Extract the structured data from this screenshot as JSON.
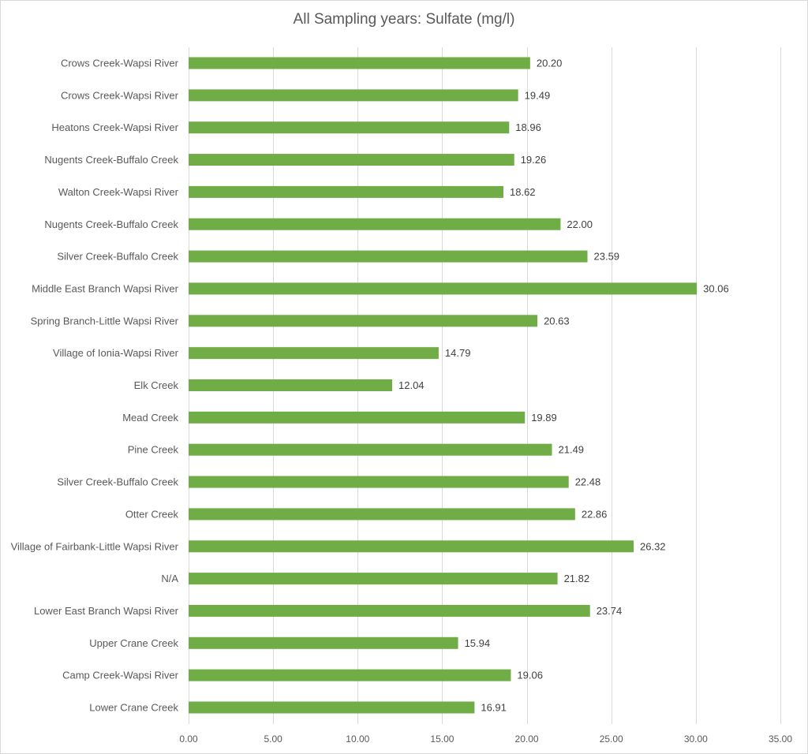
{
  "chart_data": {
    "type": "bar",
    "orientation": "horizontal",
    "title": "All Sampling years: Sulfate (mg/l)",
    "xlabel": "",
    "ylabel": "",
    "categories": [
      "Crows Creek-Wapsi River",
      "Crows Creek-Wapsi River",
      "Heatons Creek-Wapsi River",
      "Nugents Creek-Buffalo Creek",
      "Walton Creek-Wapsi River",
      "Nugents Creek-Buffalo Creek",
      "Silver Creek-Buffalo Creek",
      "Middle East Branch Wapsi River",
      "Spring Branch-Little Wapsi River",
      "Village of Ionia-Wapsi River",
      "Elk Creek",
      "Mead Creek",
      "Pine Creek",
      "Silver Creek-Buffalo Creek",
      "Otter Creek",
      "Village of Fairbank-Little Wapsi River",
      "N/A",
      "Lower East Branch Wapsi River",
      "Upper Crane Creek",
      "Camp Creek-Wapsi River",
      "Lower Crane Creek"
    ],
    "values": [
      20.2,
      19.49,
      18.96,
      19.26,
      18.62,
      22.0,
      23.59,
      30.06,
      20.63,
      14.79,
      12.04,
      19.89,
      21.49,
      22.48,
      22.86,
      26.32,
      21.82,
      23.74,
      15.94,
      19.06,
      16.91
    ],
    "value_labels": [
      "20.20",
      "19.49",
      "18.96",
      "19.26",
      "18.62",
      "22.00",
      "23.59",
      "30.06",
      "20.63",
      "14.79",
      "12.04",
      "19.89",
      "21.49",
      "22.48",
      "22.86",
      "26.32",
      "21.82",
      "23.74",
      "15.94",
      "19.06",
      "16.91"
    ],
    "xlim": [
      0,
      35
    ],
    "ticks": [
      0,
      5,
      10,
      15,
      20,
      25,
      30,
      35
    ],
    "tick_labels": [
      "0.00",
      "5.00",
      "10.00",
      "15.00",
      "20.00",
      "25.00",
      "30.00",
      "35.00"
    ],
    "grid": true,
    "legend": "none",
    "bar_color": "#70ad47",
    "grid_color": "#d9d9d9"
  }
}
